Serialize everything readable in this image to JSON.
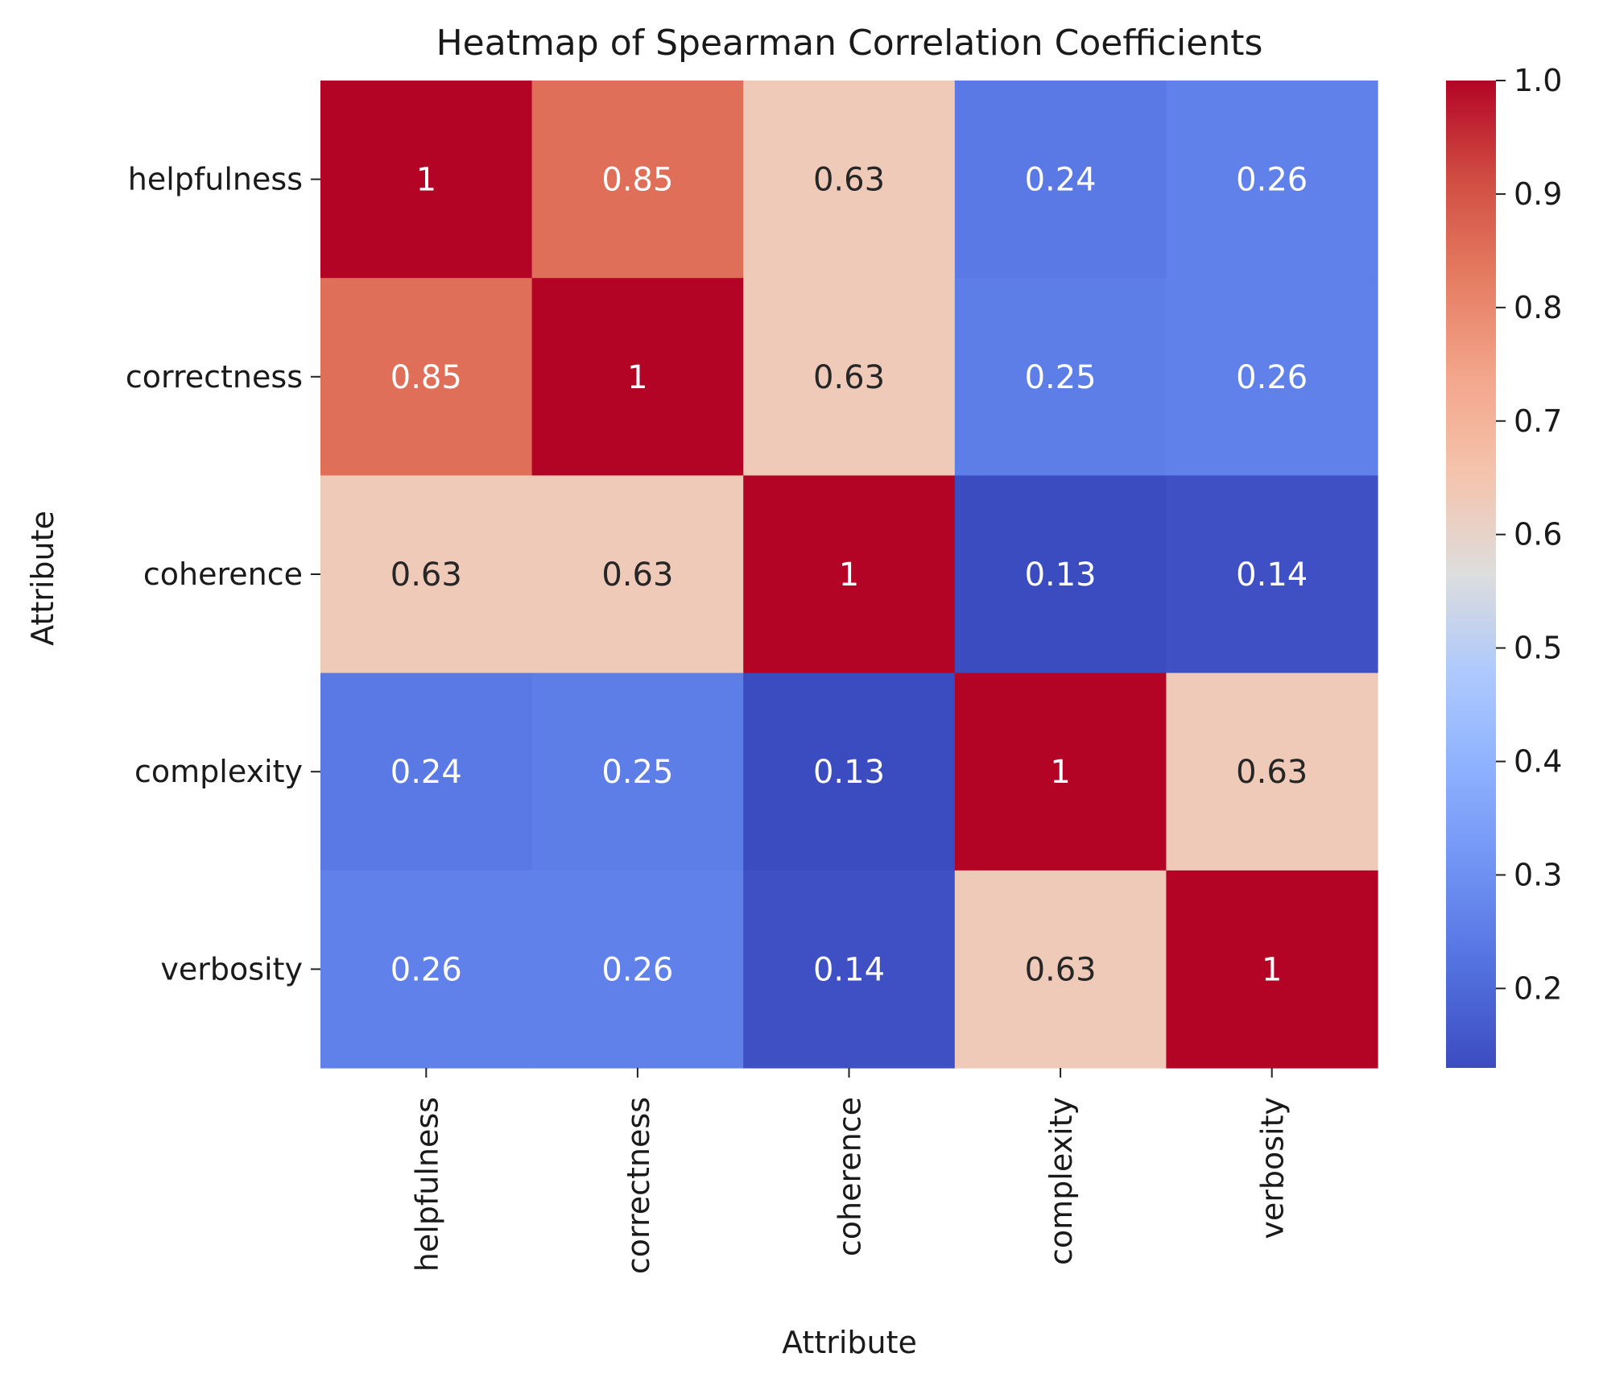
{
  "chart_data": {
    "type": "heatmap",
    "title": "Heatmap of Spearman Correlation Coefficients",
    "xlabel": "Attribute",
    "ylabel": "Attribute",
    "x_categories": [
      "helpfulness",
      "correctness",
      "coherence",
      "complexity",
      "verbosity"
    ],
    "y_categories": [
      "helpfulness",
      "correctness",
      "coherence",
      "complexity",
      "verbosity"
    ],
    "values": [
      [
        1,
        0.85,
        0.63,
        0.24,
        0.26
      ],
      [
        0.85,
        1,
        0.63,
        0.25,
        0.26
      ],
      [
        0.63,
        0.63,
        1,
        0.13,
        0.14
      ],
      [
        0.24,
        0.25,
        0.13,
        1,
        0.63
      ],
      [
        0.26,
        0.26,
        0.14,
        0.63,
        1
      ]
    ],
    "annotations": [
      [
        "1",
        "0.85",
        "0.63",
        "0.24",
        "0.26"
      ],
      [
        "0.85",
        "1",
        "0.63",
        "0.25",
        "0.26"
      ],
      [
        "0.63",
        "0.63",
        "1",
        "0.13",
        "0.14"
      ],
      [
        "0.24",
        "0.25",
        "0.13",
        "1",
        "0.63"
      ],
      [
        "0.26",
        "0.26",
        "0.14",
        "0.63",
        "1"
      ]
    ],
    "colormap": "coolwarm",
    "colorbar": {
      "range": [
        0.13,
        1.0
      ],
      "ticks": [
        0.2,
        0.3,
        0.4,
        0.5,
        0.6,
        0.7,
        0.8,
        0.9,
        1.0
      ],
      "tick_labels": [
        "0.2",
        "0.3",
        "0.4",
        "0.5",
        "0.6",
        "0.7",
        "0.8",
        "0.9",
        "1.0"
      ]
    },
    "grid": false,
    "legend": "colorbar-right"
  }
}
